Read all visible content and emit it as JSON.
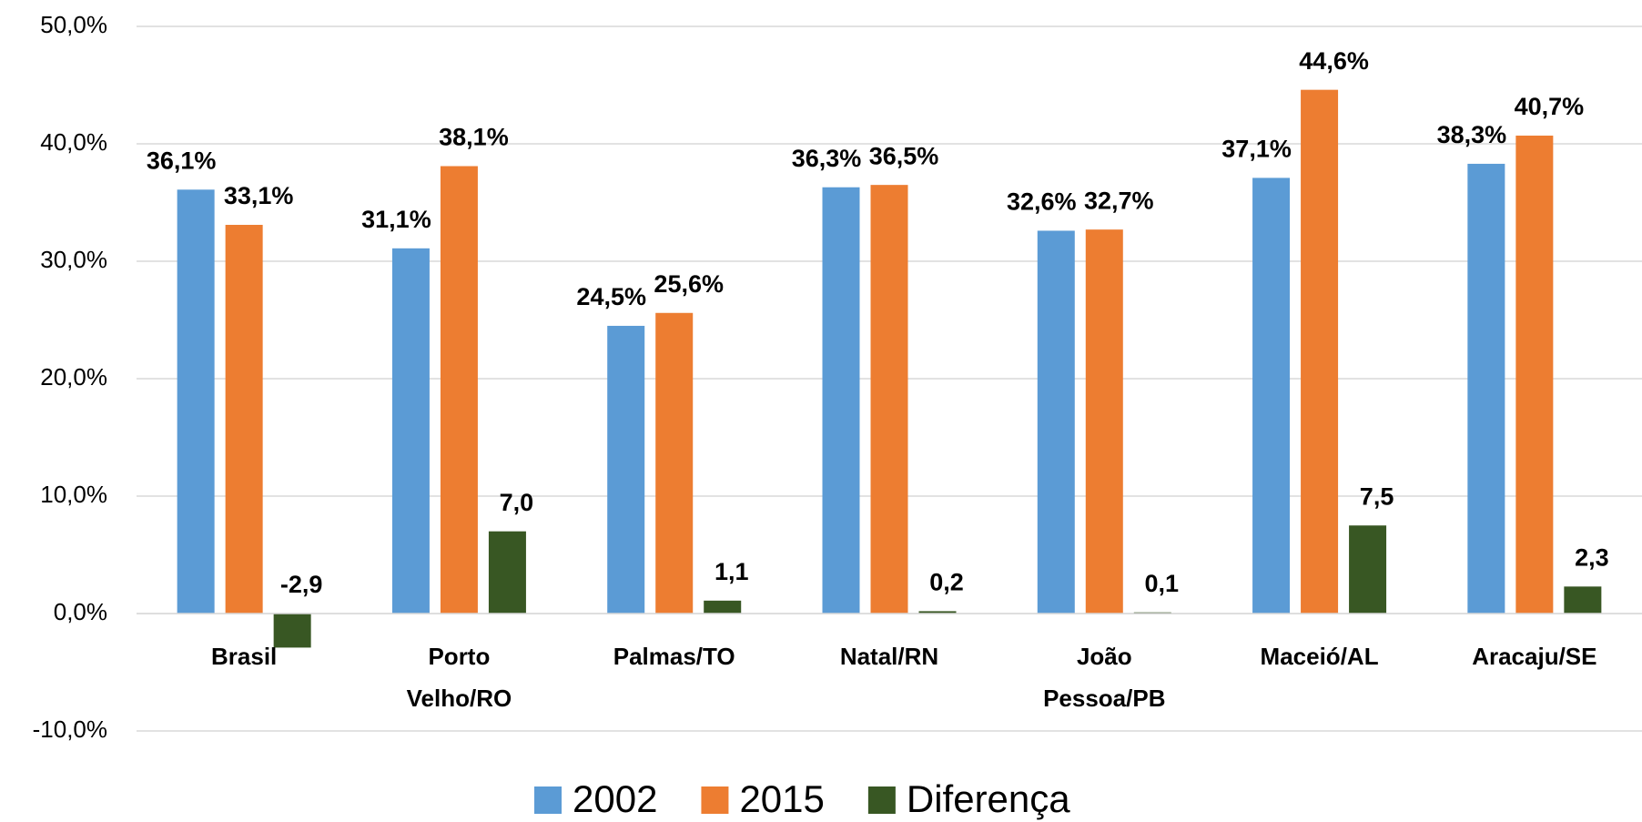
{
  "chart_data": {
    "type": "bar",
    "categories": [
      "Brasil",
      "Porto Velho/RO",
      "Palmas/TO",
      "Natal/RN",
      "João Pessoa/PB",
      "Maceió/AL",
      "Aracaju/SE"
    ],
    "series": [
      {
        "name": "2002",
        "color": "#5b9bd5",
        "values": [
          36.1,
          31.1,
          24.5,
          36.3,
          32.6,
          37.1,
          38.3
        ],
        "value_labels": [
          "36,1%",
          "31,1%",
          "24,5%",
          "36,3%",
          "32,6%",
          "37,1%",
          "38,3%"
        ]
      },
      {
        "name": "2015",
        "color": "#ed7d31",
        "values": [
          33.1,
          38.1,
          25.6,
          36.5,
          32.7,
          44.6,
          40.7
        ],
        "value_labels": [
          "33,1%",
          "38,1%",
          "25,6%",
          "36,5%",
          "32,7%",
          "44,6%",
          "40,7%"
        ]
      },
      {
        "name": "Diferença",
        "color": "#385723",
        "values": [
          -2.9,
          7.0,
          1.1,
          0.2,
          0.1,
          7.5,
          2.3
        ],
        "value_labels": [
          "-2,9",
          "7,0",
          "1,1",
          "0,2",
          "0,1",
          "7,5",
          "2,3"
        ]
      }
    ],
    "ylim": [
      -10,
      50
    ],
    "yticks": [
      {
        "value": -10,
        "label": "-10,0%"
      },
      {
        "value": 0,
        "label": "0,0%"
      },
      {
        "value": 10,
        "label": "10,0%"
      },
      {
        "value": 20,
        "label": "20,0%"
      },
      {
        "value": 30,
        "label": "30,0%"
      },
      {
        "value": 40,
        "label": "40,0%"
      },
      {
        "value": 50,
        "label": "50,0%"
      }
    ],
    "grid": true,
    "legend": "bottom"
  }
}
